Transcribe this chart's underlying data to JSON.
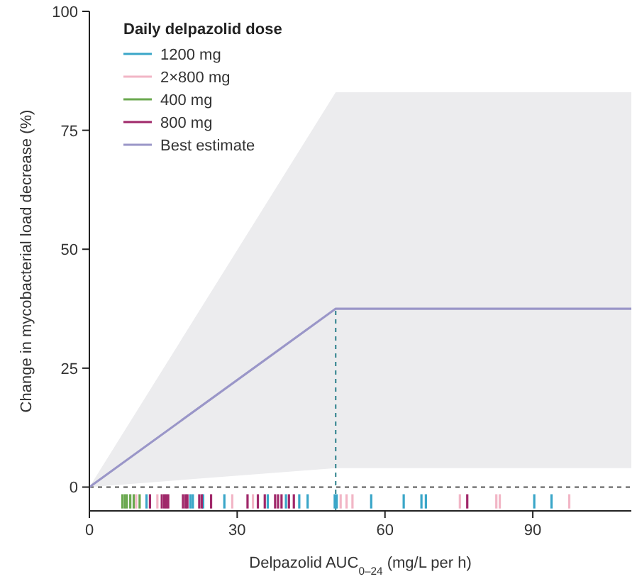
{
  "chart_data": {
    "type": "bar",
    "xlabel": "Delpazolid AUC$_{0–24}$ (mg/L per h)",
    "ylabel": "Change in mycobacterial load decrease (%)",
    "legend_title": "Daily delpazolid dose",
    "legend": "top left",
    "xlim": [
      0,
      110
    ],
    "ylim": [
      -5,
      100
    ],
    "xticks": [
      0,
      30,
      60,
      90
    ],
    "yticks": [
      0,
      25,
      50,
      75,
      100
    ],
    "series": [
      {
        "name": "1200 mg",
        "color": "#3aa6c8",
        "x": [
          11.6,
          20.5,
          21,
          23.1,
          27.4,
          36.2,
          39.9,
          42.6,
          44.3,
          49.8,
          50.2,
          57.2,
          63.8,
          67.4,
          68.3,
          90.3,
          93.8
        ],
        "values": [
          3,
          3,
          3,
          3,
          3,
          3,
          3,
          3,
          3,
          3,
          3,
          3,
          3,
          3,
          3,
          3,
          3
        ],
        "base": [
          -4.5,
          -4.5,
          -4.5,
          -4.5,
          -4.5,
          -4.5,
          -4.5,
          -4.5,
          -4.5,
          -4.5,
          -4.5,
          -4.5,
          -4.5,
          -4.5,
          -4.5,
          -4.5,
          -4.5
        ]
      },
      {
        "name": "2×800 mg",
        "color": "#f2b6c6",
        "x": [
          9.5,
          13.8,
          29,
          33.2,
          51,
          52.2,
          53.4,
          75.2,
          82.6,
          83.3,
          97.4
        ],
        "values": [
          3,
          3,
          3,
          3,
          3,
          3,
          3,
          3,
          3,
          3,
          3
        ],
        "base": [
          -4.5,
          -4.5,
          -4.5,
          -4.5,
          -4.5,
          -4.5,
          -4.5,
          -4.5,
          -4.5,
          -4.5,
          -4.5
        ]
      },
      {
        "name": "400 mg",
        "color": "#6aa84f",
        "x": [
          6.7,
          7.2,
          7.6,
          8.3,
          9,
          10.2
        ],
        "values": [
          3,
          3,
          3,
          3,
          3,
          3
        ],
        "base": [
          -4.5,
          -4.5,
          -4.5,
          -4.5,
          -4.5,
          -4.5
        ]
      },
      {
        "name": "800 mg",
        "color": "#a0286a",
        "x": [
          12.3,
          14.7,
          15.2,
          15.6,
          16,
          19,
          19.5,
          19.9,
          22.3,
          22.8,
          24.7,
          32.1,
          34.2,
          35.6,
          37.7,
          38.3,
          39,
          40.5,
          41.5,
          76.7
        ],
        "values": [
          3,
          3,
          3,
          3,
          3,
          3,
          3,
          3,
          3,
          3,
          3,
          3,
          3,
          3,
          3,
          3,
          3,
          3,
          3,
          3
        ],
        "base": [
          -4.5,
          -4.5,
          -4.5,
          -4.5,
          -4.5,
          -4.5,
          -4.5,
          -4.5,
          -4.5,
          -4.5,
          -4.5,
          -4.5,
          -4.5,
          -4.5,
          -4.5,
          -4.5,
          -4.5,
          -4.5,
          -4.5,
          -4.5
        ]
      },
      {
        "name": "Best estimate",
        "type": "line",
        "color": "#9a96c8",
        "x": [
          0,
          50,
          110
        ],
        "values": [
          0,
          37.5,
          37.5
        ],
        "lower": [
          0,
          4,
          4
        ],
        "upper": [
          0,
          83,
          83
        ]
      }
    ],
    "ref_lines": [
      {
        "axis": "y",
        "value": 0,
        "line_style": "dashed",
        "color": "#555555"
      },
      {
        "axis": "x",
        "value": 50,
        "line_style": "dashed",
        "color": "#2a7f8a"
      }
    ]
  }
}
